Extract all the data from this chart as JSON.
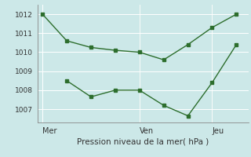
{
  "line1_x": [
    0,
    1,
    2,
    3,
    4,
    5,
    6,
    7,
    8
  ],
  "line1_y": [
    1012.0,
    1010.6,
    1010.25,
    1010.1,
    1010.0,
    1009.6,
    1010.4,
    1011.3,
    1012.0
  ],
  "line2_x": [
    1,
    2,
    3,
    4,
    5,
    6,
    7,
    8
  ],
  "line2_y": [
    1008.5,
    1007.65,
    1008.0,
    1008.0,
    1007.2,
    1006.65,
    1008.4,
    1010.4
  ],
  "color": "#2d6e2d",
  "bg_color": "#cce8e8",
  "grid_color": "#ffffff",
  "xlabel": "Pression niveau de la mer( hPa )",
  "xtick_positions": [
    0,
    4,
    7
  ],
  "xtick_labels": [
    "Mer",
    "Ven",
    "Jeu"
  ],
  "ylim": [
    1006.3,
    1012.5
  ],
  "ytick_values": [
    1007,
    1008,
    1009,
    1010,
    1011,
    1012
  ],
  "vline_x": 4,
  "vline2_x": 7,
  "xlim": [
    -0.2,
    8.5
  ]
}
